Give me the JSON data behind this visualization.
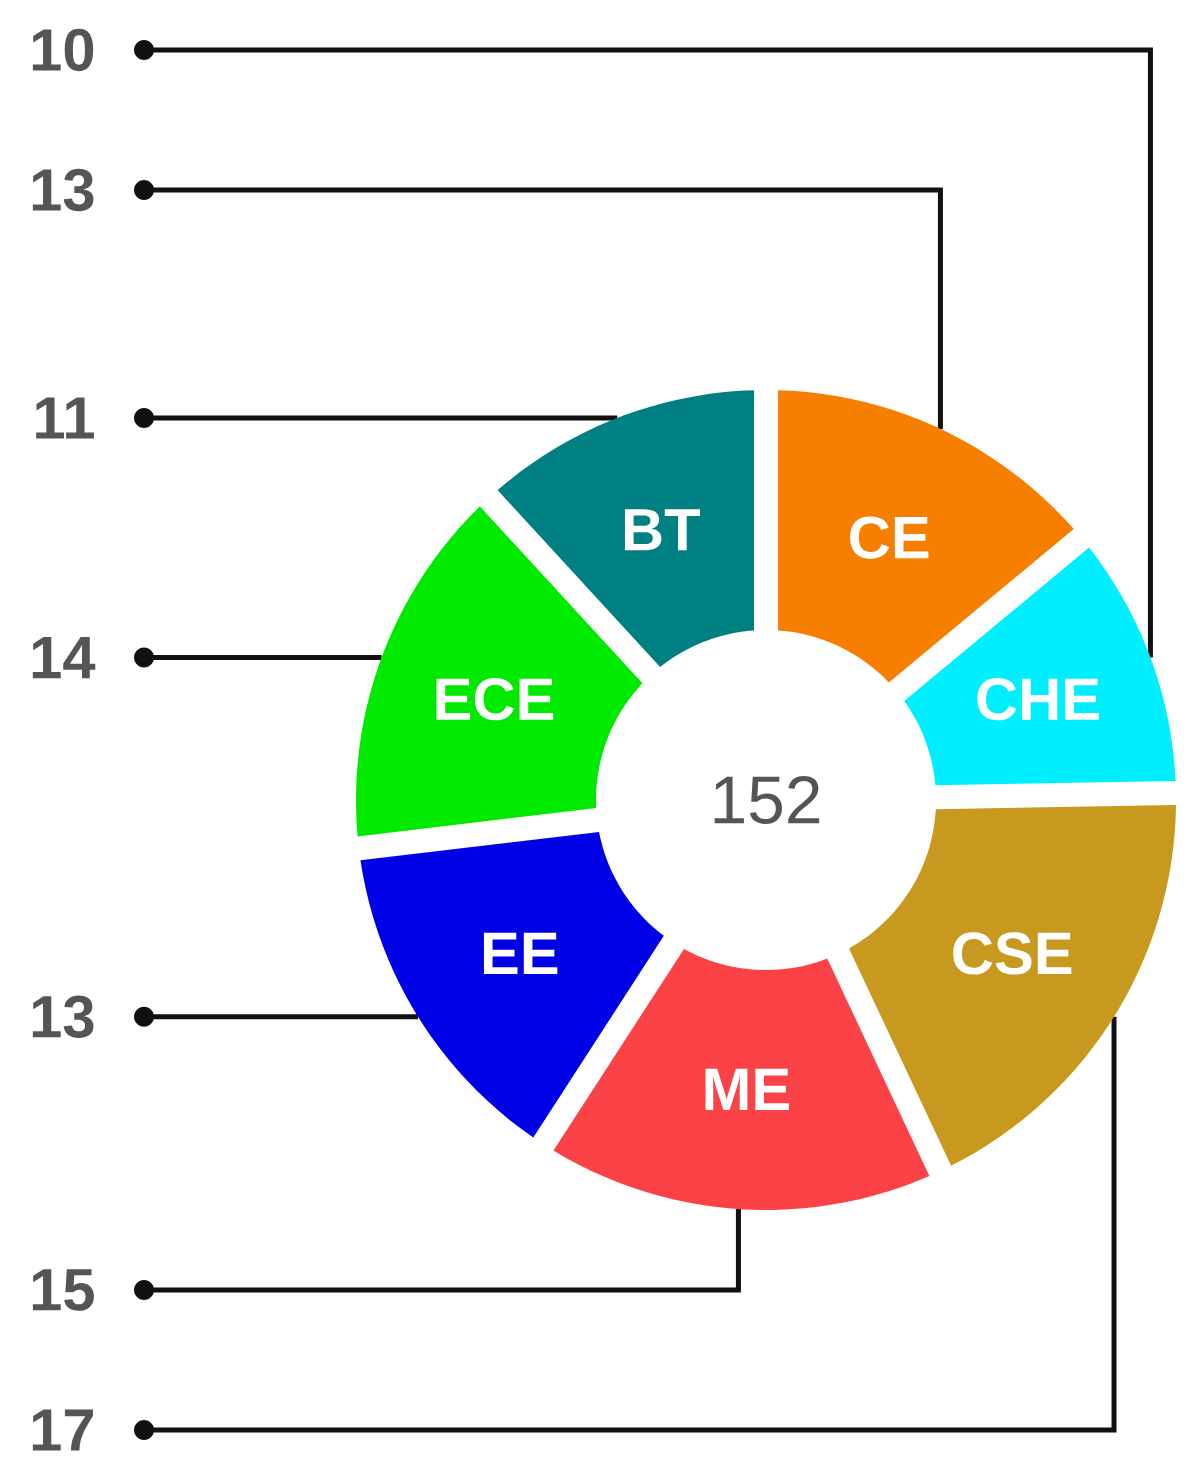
{
  "chart_data": {
    "type": "donut",
    "categories": [
      "CE",
      "CHE",
      "CSE",
      "ME",
      "EE",
      "ECE",
      "BT"
    ],
    "values": [
      13,
      10,
      17,
      15,
      13,
      14,
      11
    ],
    "colors": [
      "#f77f00",
      "#00efff",
      "#c8991f",
      "#fb4347",
      "#0000e6",
      "#00ea00",
      "#008083"
    ],
    "data_labels": true,
    "annotations": [
      "152"
    ]
  }
}
